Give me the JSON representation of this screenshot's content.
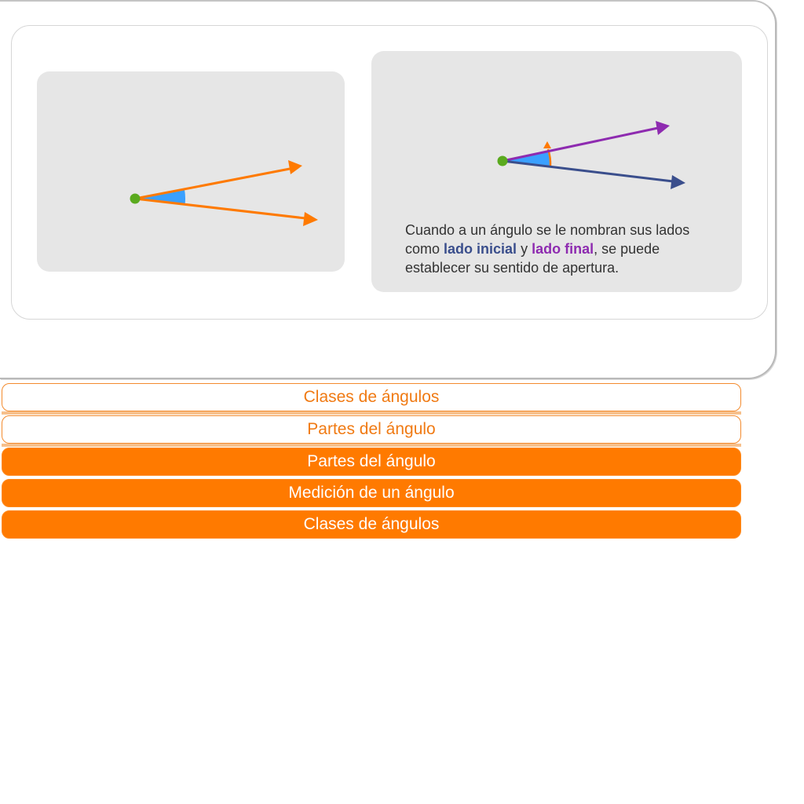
{
  "caption": {
    "part1": "Cuando a un ángulo se le nombran sus lados como ",
    "initial_side": "lado inicial",
    "connector": " y ",
    "final_side": "lado final",
    "part2": ", se puede establecer su sentido de apertura."
  },
  "nav": {
    "items": [
      {
        "label": "Clases de ángulos",
        "style": "outline"
      },
      {
        "label": "Partes del ángulo",
        "style": "outline"
      },
      {
        "label": "Partes del ángulo",
        "style": "filled"
      },
      {
        "label": "Medición de un ángulo",
        "style": "filled"
      },
      {
        "label": "Clases de ángulos",
        "style": "filled"
      }
    ]
  },
  "colors": {
    "accent_orange": "#ff7a00",
    "initial_side": "#3a4e8c",
    "final_side": "#8e2bb0",
    "angle_fill": "#3aa0ff",
    "vertex": "#5aaa1e",
    "panel_bg": "#e6e6e6"
  }
}
